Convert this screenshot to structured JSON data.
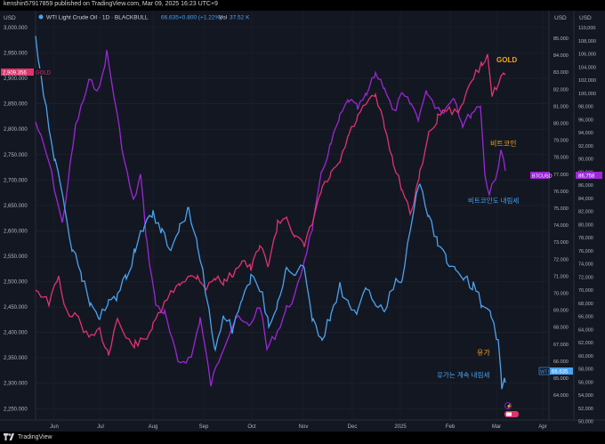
{
  "header": {
    "published": "kenshin57917859 published on TradingView.com, Mar 09, 2025 16:23 UTC+9"
  },
  "legend": {
    "symbol": "WTI Light Crude Oil · 1D · BLACKBULL",
    "price": "66.635",
    "change": "+0.800 (+1.22%)",
    "vol_label": "Vol",
    "vol": "37.52 K"
  },
  "left_axis": {
    "unit": "USD",
    "ticks": [
      "3,000.000",
      "2,950.000",
      "2,900.000",
      "2,850.000",
      "2,800.000",
      "2,750.000",
      "2,700.000",
      "2,650.000",
      "2,600.000",
      "2,550.000",
      "2,500.000",
      "2,450.000",
      "2,400.000",
      "2,350.000",
      "2,300.000",
      "2,250.000"
    ],
    "tag_value": "2,909.356",
    "tag_name": "GOLD"
  },
  "right_axis_oil": {
    "unit": "USD",
    "ticks": [
      "85.000",
      "84.000",
      "83.000",
      "82.000",
      "81.000",
      "80.000",
      "79.000",
      "78.000",
      "77.000",
      "76.000",
      "75.000",
      "74.000",
      "73.000",
      "72.000",
      "71.000",
      "70.000",
      "69.000",
      "68.000",
      "67.000",
      "66.000",
      "65.000",
      "64.000"
    ],
    "tag_name": "WTI",
    "tag_value": "66.635"
  },
  "right_axis_btc": {
    "unit": "USD",
    "ticks": [
      "110,000",
      "108,000",
      "106,000",
      "104,000",
      "102,000",
      "100,000",
      "98,000",
      "96,000",
      "94,000",
      "92,000",
      "90,000",
      "88,000",
      "86,000",
      "84,000",
      "82,000",
      "80,000",
      "78,000",
      "76,000",
      "74,000",
      "72,000",
      "70,000",
      "68,000",
      "66,000",
      "64,000",
      "62,000",
      "60,000",
      "58,000",
      "56,000",
      "54,000",
      "52,000",
      "50,000"
    ],
    "tag_name": "BTCUSD",
    "tag_value": "86,758"
  },
  "x_axis": {
    "labels": [
      "Jun",
      "Jul",
      "Aug",
      "Sep",
      "Oct",
      "Nov",
      "Dec",
      "2025",
      "Feb",
      "Mar",
      "Apr"
    ]
  },
  "annotations": {
    "gold": "GOLD",
    "bitcoin": "비트코인",
    "bitcoin_trend": "비트코인도 내림세",
    "oil": "유가",
    "oil_trend": "유가는 계속 내림세"
  },
  "colors": {
    "background": "#131722",
    "gold": "#e0336e",
    "bitcoin": "#9c27d6",
    "oil": "#4aa3f0",
    "annotation": "#f7a21b",
    "annotation_blue": "#4aa3f0"
  },
  "footer": {
    "brand": "TradingView"
  }
}
